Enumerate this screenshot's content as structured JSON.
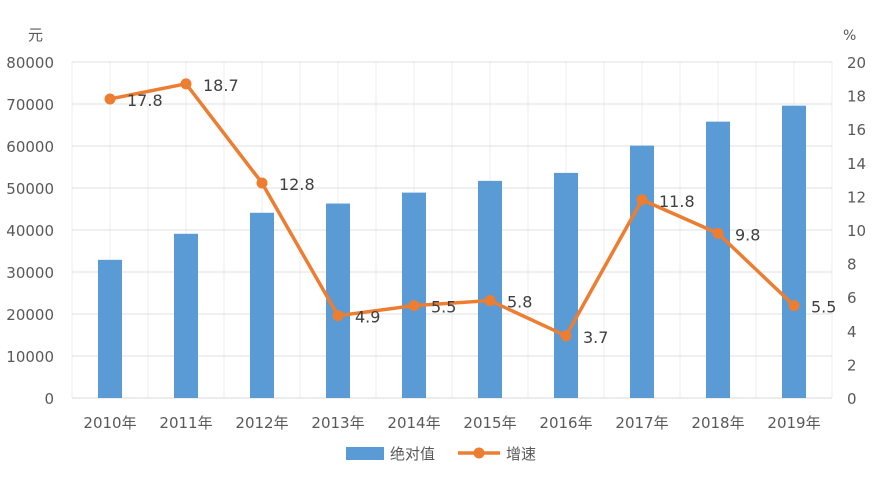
{
  "chart_data": {
    "type": "bar+line",
    "categories": [
      "2010年",
      "2011年",
      "2012年",
      "2013年",
      "2014年",
      "2015年",
      "2016年",
      "2017年",
      "2018年",
      "2019年"
    ],
    "left_axis": {
      "label": "元",
      "ylim": [
        0,
        80000
      ],
      "ticks": [
        0,
        10000,
        20000,
        30000,
        40000,
        50000,
        60000,
        70000,
        80000
      ]
    },
    "right_axis": {
      "label": "%",
      "ylim": [
        0,
        20
      ],
      "ticks": [
        0,
        2,
        4,
        6,
        8,
        10,
        12,
        14,
        16,
        18,
        20
      ]
    },
    "series": [
      {
        "name": "绝对值",
        "type": "bar",
        "axis": "left",
        "color": "#5B9BD5",
        "values": [
          32900,
          39100,
          44100,
          46300,
          48900,
          51700,
          53600,
          60100,
          65800,
          69600
        ]
      },
      {
        "name": "增速",
        "type": "line",
        "axis": "right",
        "color": "#ED7D31",
        "values": [
          17.8,
          18.7,
          12.8,
          4.9,
          5.5,
          5.8,
          3.7,
          11.8,
          9.8,
          5.5
        ],
        "data_labels": [
          "17.8",
          "18.7",
          "12.8",
          "4.9",
          "5.5",
          "5.8",
          "3.7",
          "11.8",
          "9.8",
          "5.5"
        ]
      }
    ],
    "grid": true,
    "legend": "bottom"
  }
}
